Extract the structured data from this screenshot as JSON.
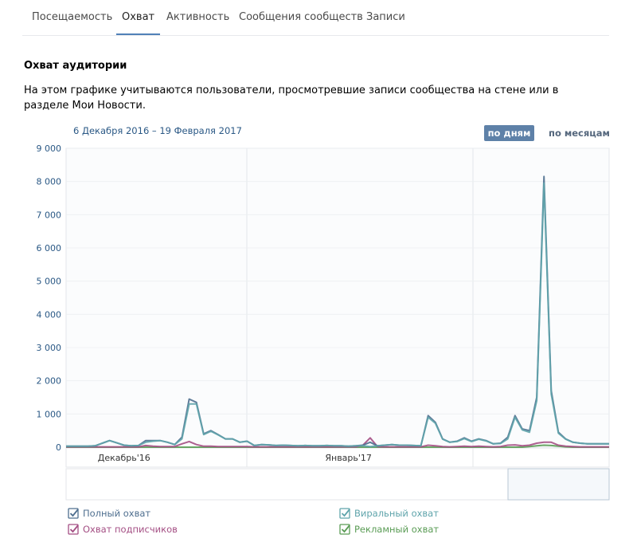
{
  "tabs": [
    {
      "label": "Посещаемость",
      "active": false
    },
    {
      "label": "Охват",
      "active": true
    },
    {
      "label": "Активность",
      "active": false
    },
    {
      "label": "Сообщения сообществ",
      "active": false
    },
    {
      "label": "Записи",
      "active": false
    }
  ],
  "section_title": "Охват аудитории",
  "description": "На этом графике учитываются пользователи, просмотревшие записи сообщества на стене или в разделе Мои Новости.",
  "chart_data": {
    "type": "line",
    "date_range": "6 Декабря 2016 – 19 Февраля 2017",
    "buttons": [
      {
        "label": "по дням",
        "active": true
      },
      {
        "label": "по месяцам",
        "active": false
      }
    ],
    "categories": [
      null,
      null,
      null,
      null,
      null,
      null,
      null,
      null,
      "Декабрь'16",
      null,
      null,
      null,
      null,
      null,
      null,
      null,
      null,
      null,
      null,
      null,
      null,
      null,
      null,
      null,
      null,
      null,
      null,
      null,
      null,
      null,
      null,
      null,
      null,
      null,
      null,
      null,
      null,
      null,
      null,
      "Январь'17",
      null,
      null,
      null,
      null,
      null,
      null,
      null,
      null,
      null,
      null,
      null,
      null,
      null,
      null,
      null,
      null,
      null,
      null,
      null,
      null,
      null,
      null,
      null,
      null,
      null,
      null,
      null,
      null,
      null,
      null,
      null,
      null,
      null,
      null,
      null,
      null
    ],
    "ylim": [
      0,
      9000
    ],
    "yticks": [
      0,
      {
        "value": 1000,
        "label": "1 000"
      },
      {
        "value": 2000,
        "label": "2 000"
      },
      {
        "value": 3000,
        "label": "3 000"
      },
      {
        "value": 4000,
        "label": "4 000"
      },
      {
        "value": 5000,
        "label": "5 000"
      },
      {
        "value": 6000,
        "label": "6 000"
      },
      {
        "value": 7000,
        "label": "7 000"
      },
      {
        "value": 8000,
        "label": "8 000"
      },
      {
        "value": 9000,
        "label": "9 000"
      }
    ],
    "grid": true,
    "series": [
      {
        "name": "Полный охват",
        "color": "#4f6f8f",
        "values": [
          30,
          30,
          30,
          30,
          40,
          120,
          200,
          130,
          60,
          40,
          50,
          200,
          200,
          200,
          150,
          80,
          300,
          1450,
          1350,
          400,
          500,
          380,
          250,
          250,
          150,
          180,
          50,
          80,
          70,
          50,
          60,
          50,
          40,
          50,
          40,
          40,
          50,
          40,
          40,
          30,
          40,
          60,
          150,
          40,
          60,
          80,
          60,
          60,
          50,
          40,
          950,
          750,
          250,
          150,
          180,
          280,
          180,
          250,
          200,
          100,
          120,
          300,
          950,
          550,
          500,
          1500,
          8150,
          1700,
          450,
          250,
          150,
          120,
          100,
          100,
          100,
          100
        ]
      },
      {
        "name": "Виральный охват",
        "color": "#5fa4ab",
        "values": [
          30,
          30,
          30,
          30,
          40,
          120,
          200,
          130,
          60,
          40,
          50,
          150,
          180,
          200,
          150,
          80,
          250,
          1300,
          1300,
          380,
          480,
          370,
          250,
          250,
          150,
          180,
          50,
          80,
          70,
          50,
          60,
          50,
          40,
          50,
          40,
          40,
          50,
          40,
          40,
          30,
          40,
          40,
          20,
          40,
          60,
          80,
          60,
          60,
          50,
          40,
          900,
          720,
          240,
          150,
          170,
          260,
          170,
          240,
          190,
          100,
          110,
          250,
          900,
          520,
          450,
          1400,
          7950,
          1600,
          420,
          240,
          150,
          120,
          100,
          100,
          100,
          100
        ]
      },
      {
        "name": "Охват подписчиков",
        "color": "#a44f84",
        "values": [
          10,
          10,
          10,
          10,
          10,
          10,
          10,
          10,
          10,
          10,
          10,
          50,
          30,
          20,
          20,
          20,
          100,
          170,
          80,
          30,
          30,
          20,
          20,
          20,
          20,
          20,
          10,
          10,
          10,
          10,
          10,
          10,
          10,
          10,
          10,
          10,
          10,
          10,
          10,
          10,
          10,
          60,
          280,
          20,
          10,
          10,
          10,
          10,
          10,
          10,
          60,
          40,
          20,
          10,
          20,
          30,
          20,
          30,
          20,
          10,
          20,
          60,
          70,
          40,
          60,
          120,
          150,
          150,
          60,
          30,
          20,
          10,
          10,
          10,
          10,
          10
        ]
      },
      {
        "name": "Рекламный охват",
        "color": "#5a9c55",
        "values": [
          0,
          0,
          0,
          0,
          0,
          0,
          0,
          0,
          0,
          0,
          0,
          0,
          0,
          0,
          0,
          0,
          0,
          0,
          0,
          0,
          0,
          0,
          0,
          0,
          0,
          0,
          0,
          0,
          0,
          0,
          0,
          0,
          0,
          0,
          0,
          0,
          0,
          0,
          0,
          0,
          0,
          0,
          0,
          0,
          0,
          0,
          0,
          0,
          0,
          0,
          0,
          0,
          0,
          0,
          0,
          0,
          0,
          0,
          0,
          0,
          0,
          0,
          0,
          0,
          20,
          40,
          60,
          50,
          30,
          10,
          0,
          0,
          0,
          0,
          0,
          0
        ]
      }
    ]
  }
}
